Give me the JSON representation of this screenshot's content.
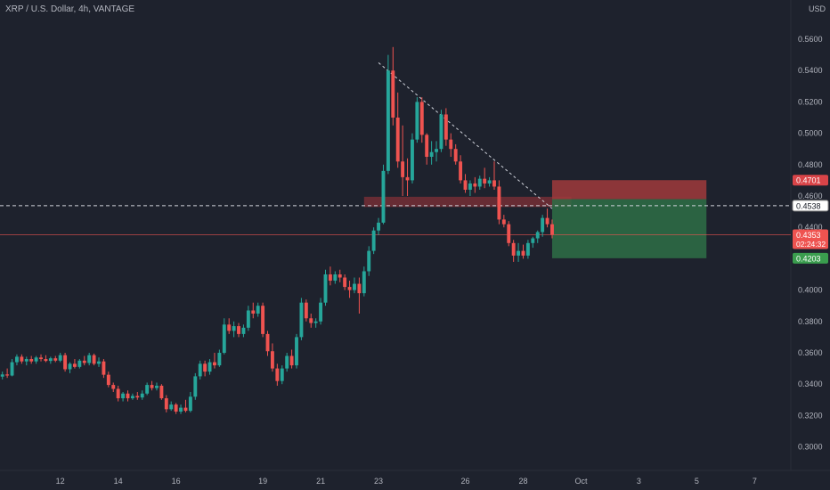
{
  "header": {
    "title": "XRP / U.S. Dollar, 4h, VANTAGE",
    "currency": "USD"
  },
  "colors": {
    "background": "#1e222d",
    "up": "#26a69a",
    "down": "#ef5350",
    "grid": "#2a2e39",
    "text": "#b2b5be",
    "stop_zone": "#a03a3c",
    "target_zone": "#2e6f47"
  },
  "chart_data": {
    "type": "candlestick",
    "title": "XRP / U.S. Dollar, 4h, VANTAGE",
    "ylabel": "USD",
    "ylim": [
      0.285,
      0.585
    ],
    "grid": false,
    "y_ticks": [
      "0.5600",
      "0.5400",
      "0.5200",
      "0.5000",
      "0.4800",
      "0.4600",
      "0.4400",
      "0.4000",
      "0.3800",
      "0.3600",
      "0.3400",
      "0.3200",
      "0.3000"
    ],
    "x_ticks": [
      {
        "label": "12",
        "bar": 12
      },
      {
        "label": "14",
        "bar": 24
      },
      {
        "label": "16",
        "bar": 36
      },
      {
        "label": "19",
        "bar": 54
      },
      {
        "label": "21",
        "bar": 66
      },
      {
        "label": "23",
        "bar": 78
      },
      {
        "label": "26",
        "bar": 96
      },
      {
        "label": "28",
        "bar": 108
      },
      {
        "label": "Oct",
        "bar": 120
      },
      {
        "label": "3",
        "bar": 132
      },
      {
        "label": "5",
        "bar": 144
      },
      {
        "label": "7",
        "bar": 156
      }
    ],
    "total_bars": 164,
    "candles": [
      [
        0.3448,
        0.348,
        0.343,
        0.3462
      ],
      [
        0.3462,
        0.35,
        0.344,
        0.3455
      ],
      [
        0.3455,
        0.356,
        0.345,
        0.354
      ],
      [
        0.354,
        0.359,
        0.352,
        0.3575
      ],
      [
        0.3575,
        0.359,
        0.353,
        0.3545
      ],
      [
        0.3545,
        0.3575,
        0.352,
        0.356
      ],
      [
        0.356,
        0.358,
        0.353,
        0.3545
      ],
      [
        0.3545,
        0.358,
        0.353,
        0.357
      ],
      [
        0.357,
        0.359,
        0.3545,
        0.356
      ],
      [
        0.356,
        0.3585,
        0.354,
        0.3548
      ],
      [
        0.3548,
        0.3575,
        0.353,
        0.3565
      ],
      [
        0.3565,
        0.358,
        0.354,
        0.355
      ],
      [
        0.355,
        0.36,
        0.354,
        0.3585
      ],
      [
        0.3585,
        0.36,
        0.348,
        0.3495
      ],
      [
        0.3495,
        0.354,
        0.347,
        0.353
      ],
      [
        0.353,
        0.356,
        0.35,
        0.351
      ],
      [
        0.351,
        0.356,
        0.35,
        0.355
      ],
      [
        0.355,
        0.358,
        0.352,
        0.3535
      ],
      [
        0.3535,
        0.36,
        0.352,
        0.3585
      ],
      [
        0.3585,
        0.3595,
        0.352,
        0.353
      ],
      [
        0.353,
        0.357,
        0.351,
        0.3545
      ],
      [
        0.3545,
        0.356,
        0.344,
        0.346
      ],
      [
        0.346,
        0.348,
        0.338,
        0.3395
      ],
      [
        0.3395,
        0.341,
        0.335,
        0.337
      ],
      [
        0.337,
        0.339,
        0.329,
        0.331
      ],
      [
        0.331,
        0.335,
        0.329,
        0.334
      ],
      [
        0.334,
        0.336,
        0.329,
        0.331
      ],
      [
        0.331,
        0.334,
        0.33,
        0.3325
      ],
      [
        0.3325,
        0.335,
        0.33,
        0.3315
      ],
      [
        0.3315,
        0.336,
        0.33,
        0.334
      ],
      [
        0.334,
        0.341,
        0.333,
        0.3395
      ],
      [
        0.3395,
        0.342,
        0.336,
        0.3375
      ],
      [
        0.3375,
        0.341,
        0.336,
        0.339
      ],
      [
        0.339,
        0.34,
        0.33,
        0.331
      ],
      [
        0.331,
        0.333,
        0.322,
        0.324
      ],
      [
        0.324,
        0.329,
        0.323,
        0.327
      ],
      [
        0.327,
        0.328,
        0.321,
        0.3225
      ],
      [
        0.3225,
        0.327,
        0.321,
        0.325
      ],
      [
        0.325,
        0.33,
        0.322,
        0.323
      ],
      [
        0.323,
        0.335,
        0.322,
        0.332
      ],
      [
        0.332,
        0.347,
        0.33,
        0.345
      ],
      [
        0.345,
        0.355,
        0.343,
        0.353
      ],
      [
        0.353,
        0.355,
        0.345,
        0.348
      ],
      [
        0.348,
        0.356,
        0.346,
        0.354
      ],
      [
        0.354,
        0.36,
        0.35,
        0.352
      ],
      [
        0.352,
        0.362,
        0.351,
        0.36
      ],
      [
        0.36,
        0.382,
        0.359,
        0.378
      ],
      [
        0.378,
        0.382,
        0.372,
        0.374
      ],
      [
        0.374,
        0.38,
        0.37,
        0.377
      ],
      [
        0.377,
        0.379,
        0.37,
        0.372
      ],
      [
        0.372,
        0.378,
        0.37,
        0.376
      ],
      [
        0.376,
        0.39,
        0.374,
        0.387
      ],
      [
        0.387,
        0.392,
        0.382,
        0.385
      ],
      [
        0.385,
        0.392,
        0.383,
        0.39
      ],
      [
        0.39,
        0.392,
        0.37,
        0.372
      ],
      [
        0.372,
        0.374,
        0.358,
        0.361
      ],
      [
        0.361,
        0.366,
        0.348,
        0.35
      ],
      [
        0.35,
        0.353,
        0.339,
        0.342
      ],
      [
        0.342,
        0.352,
        0.34,
        0.35
      ],
      [
        0.35,
        0.36,
        0.348,
        0.358
      ],
      [
        0.358,
        0.362,
        0.35,
        0.352
      ],
      [
        0.352,
        0.372,
        0.35,
        0.37
      ],
      [
        0.37,
        0.395,
        0.368,
        0.392
      ],
      [
        0.392,
        0.394,
        0.38,
        0.382
      ],
      [
        0.382,
        0.385,
        0.376,
        0.379
      ],
      [
        0.379,
        0.382,
        0.376,
        0.38
      ],
      [
        0.38,
        0.395,
        0.378,
        0.392
      ],
      [
        0.392,
        0.413,
        0.39,
        0.41
      ],
      [
        0.41,
        0.415,
        0.403,
        0.406
      ],
      [
        0.406,
        0.412,
        0.404,
        0.41
      ],
      [
        0.41,
        0.413,
        0.405,
        0.408
      ],
      [
        0.408,
        0.41,
        0.4,
        0.402
      ],
      [
        0.402,
        0.406,
        0.395,
        0.4
      ],
      [
        0.4,
        0.408,
        0.398,
        0.404
      ],
      [
        0.404,
        0.408,
        0.385,
        0.398
      ],
      [
        0.398,
        0.415,
        0.396,
        0.412
      ],
      [
        0.412,
        0.428,
        0.409,
        0.425
      ],
      [
        0.425,
        0.44,
        0.423,
        0.438
      ],
      [
        0.438,
        0.446,
        0.435,
        0.443
      ],
      [
        0.443,
        0.48,
        0.442,
        0.476
      ],
      [
        0.476,
        0.55,
        0.474,
        0.54
      ],
      [
        0.54,
        0.555,
        0.505,
        0.51
      ],
      [
        0.51,
        0.526,
        0.478,
        0.482
      ],
      [
        0.482,
        0.505,
        0.46,
        0.472
      ],
      [
        0.472,
        0.484,
        0.46,
        0.47
      ],
      [
        0.47,
        0.5,
        0.468,
        0.496
      ],
      [
        0.496,
        0.523,
        0.494,
        0.52
      ],
      [
        0.52,
        0.523,
        0.494,
        0.499
      ],
      [
        0.499,
        0.5,
        0.48,
        0.485
      ],
      [
        0.485,
        0.495,
        0.48,
        0.488
      ],
      [
        0.488,
        0.495,
        0.482,
        0.49
      ],
      [
        0.49,
        0.515,
        0.488,
        0.512
      ],
      [
        0.512,
        0.516,
        0.492,
        0.496
      ],
      [
        0.496,
        0.5,
        0.485,
        0.49
      ],
      [
        0.49,
        0.493,
        0.48,
        0.482
      ],
      [
        0.482,
        0.486,
        0.468,
        0.47
      ],
      [
        0.47,
        0.474,
        0.462,
        0.464
      ],
      [
        0.464,
        0.47,
        0.46,
        0.468
      ],
      [
        0.468,
        0.472,
        0.462,
        0.466
      ],
      [
        0.466,
        0.473,
        0.464,
        0.471
      ],
      [
        0.471,
        0.478,
        0.465,
        0.468
      ],
      [
        0.468,
        0.472,
        0.466,
        0.47
      ],
      [
        0.47,
        0.482,
        0.464,
        0.466
      ],
      [
        0.466,
        0.47,
        0.442,
        0.445
      ],
      [
        0.445,
        0.448,
        0.44,
        0.442
      ],
      [
        0.442,
        0.444,
        0.428,
        0.43
      ],
      [
        0.43,
        0.432,
        0.418,
        0.422
      ],
      [
        0.422,
        0.43,
        0.418,
        0.425
      ],
      [
        0.425,
        0.429,
        0.42,
        0.422
      ],
      [
        0.422,
        0.432,
        0.42,
        0.43
      ],
      [
        0.43,
        0.434,
        0.427,
        0.433
      ],
      [
        0.433,
        0.438,
        0.43,
        0.437
      ],
      [
        0.437,
        0.448,
        0.434,
        0.446
      ],
      [
        0.446,
        0.452,
        0.44,
        0.442
      ],
      [
        0.442,
        0.445,
        0.433,
        0.4353
      ]
    ],
    "levels": [
      {
        "name": "dashed-horizontal-level",
        "price": 0.4538,
        "label": "0.4538",
        "style": "dashed"
      },
      {
        "name": "current-price-line",
        "price": 0.4353,
        "label": "0.4353",
        "countdown": "02:24:32",
        "style": "solid"
      }
    ],
    "trendline": {
      "from": {
        "bar": 78,
        "price": 0.545
      },
      "to": {
        "bar": 114,
        "price": 0.452
      }
    },
    "resistance_zone": {
      "from_bar": 75,
      "to_bar": 118,
      "top": 0.4595,
      "bottom": 0.453
    },
    "position": {
      "start_bar": 114,
      "end_bar": 146,
      "stop": 0.4701,
      "entry": 0.458,
      "target": 0.4203,
      "stop_label": "0.4701",
      "target_label": "0.4203"
    }
  }
}
